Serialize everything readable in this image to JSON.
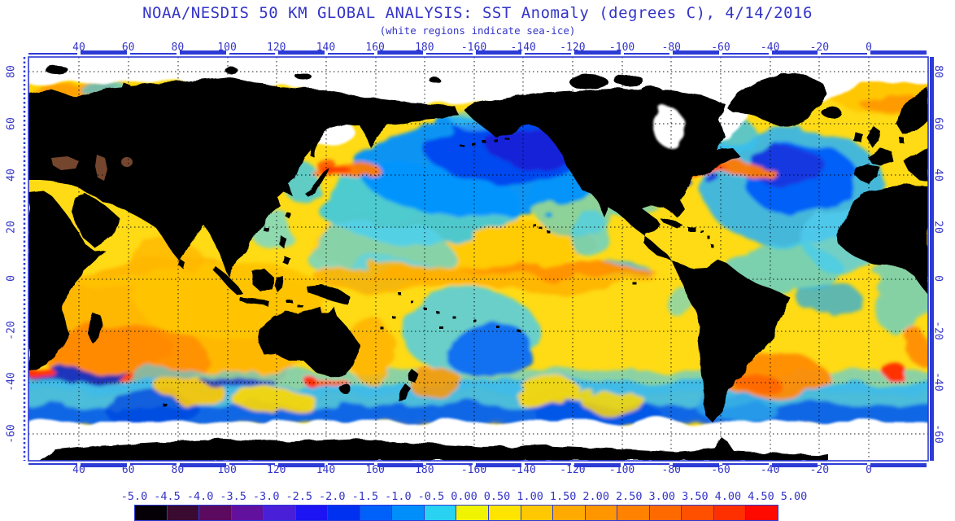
{
  "header": {
    "title": "NOAA/NESDIS 50 KM GLOBAL ANALYSIS: SST Anomaly (degrees C), 4/14/2016",
    "subtitle": "(white regions indicate sea-ice)"
  },
  "axes": {
    "lon_labels": [
      "40",
      "60",
      "80",
      "100",
      "120",
      "140",
      "160",
      "180",
      "-160",
      "-140",
      "-120",
      "-100",
      "-80",
      "-60",
      "-40",
      "-20",
      "0"
    ],
    "lat_labels": [
      "80",
      "60",
      "40",
      "20",
      "0",
      "-20",
      "-40",
      "-60"
    ],
    "tick_color": "#3434c8",
    "frame_color": "#2d3bd6",
    "grid_style": "dotted-black"
  },
  "colorbar": {
    "labels": [
      "-5.0",
      "-4.5",
      "-4.0",
      "-3.5",
      "-3.0",
      "-2.5",
      "-2.0",
      "-1.5",
      "-1.0",
      "-0.5",
      "0.00",
      "0.50",
      "1.00",
      "1.50",
      "2.00",
      "2.50",
      "3.00",
      "3.50",
      "4.00",
      "4.50",
      "5.00"
    ],
    "cell_colors": [
      "#050005",
      "#3a0a30",
      "#5c0a60",
      "#62109e",
      "#4a1fd8",
      "#1c14f2",
      "#0030f0",
      "#0060fa",
      "#008ffa",
      "#28d2f0",
      "#f0f400",
      "#ffe400",
      "#ffc800",
      "#ffaa00",
      "#ff9600",
      "#ff8200",
      "#ff6a00",
      "#ff5000",
      "#ff3000",
      "#ff0a00"
    ],
    "units": "degrees C"
  },
  "map_legend": {
    "land_color": "#000000",
    "sea_ice_color": "#ffffff",
    "inland_sea_color": "#74462e"
  },
  "chart_data": {
    "type": "heatmap",
    "title": "NOAA/NESDIS 50 KM GLOBAL ANALYSIS: SST Anomaly (degrees C), 4/14/2016",
    "subtitle": "(white regions indicate sea-ice)",
    "date": "4/14/2016",
    "resolution": "50 KM",
    "variable": "SST Anomaly",
    "units": "degrees C",
    "xlabel_ticks": [
      40,
      60,
      80,
      100,
      120,
      140,
      160,
      180,
      -160,
      -140,
      -120,
      -100,
      -80,
      -60,
      -40,
      -20,
      0
    ],
    "ylabel_ticks": [
      80,
      60,
      40,
      20,
      0,
      -20,
      -40,
      -60
    ],
    "xlim_lon": [
      20,
      20
    ],
    "ylim_lat": [
      -70,
      85
    ],
    "grid": "dotted, every 20 degrees",
    "colorbar_scale": {
      "min": -5.0,
      "max": 5.0,
      "step": 0.5,
      "levels": [
        -5.0,
        -4.5,
        -4.0,
        -3.5,
        -3.0,
        -2.5,
        -2.0,
        -1.5,
        -1.0,
        -0.5,
        0.0,
        0.5,
        1.0,
        1.5,
        2.0,
        2.5,
        3.0,
        3.5,
        4.0,
        4.5,
        5.0
      ],
      "colors": [
        "#050005",
        "#3a0a30",
        "#5c0a60",
        "#62109e",
        "#4a1fd8",
        "#1c14f2",
        "#0030f0",
        "#0060fa",
        "#008ffa",
        "#28d2f0",
        "#f0f400",
        "#ffe400",
        "#ffc800",
        "#ffaa00",
        "#ff9600",
        "#ff8200",
        "#ff6a00",
        "#ff5000",
        "#ff3000",
        "#ff0a00"
      ]
    },
    "depicted_features": [
      "warm (+1 to +2C) anomalies across most tropical oceans and Indian Ocean",
      "equatorial Pacific warm band (El Nino remnant, +1 to +2C)",
      "large cold anomaly (-2 to -4C) in central North Pacific near 40-55N",
      "large cold anomaly (-2 to -4C) in North Atlantic south of Greenland",
      "warm Gulf Stream streak (+3 to +5C) off US east coast",
      "warm Kuroshio streak east of Japan",
      "cold circumpolar Southern Ocean band with mixed warm patches",
      "white sea-ice regions in Arctic, Sea of Okhotsk, Hudson Bay and around Antarctica",
      "land masked black; Black/Caspian/Aral seas shown brown"
    ]
  }
}
